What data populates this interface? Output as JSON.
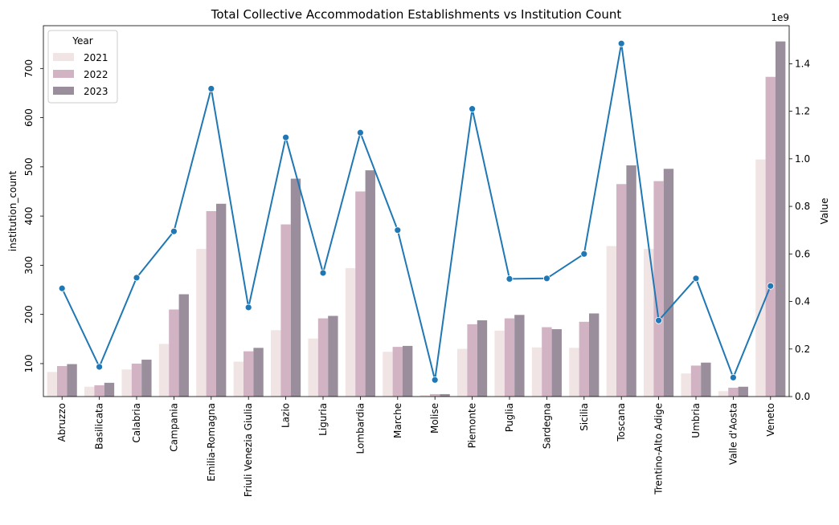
{
  "chart_data": {
    "type": "bar",
    "title": "Total Collective Accommodation Establishments vs Institution Count",
    "categories": [
      "Abruzzo",
      "Basilicata",
      "Calabria",
      "Campania",
      "Emilia-Romagna",
      "Friuli Venezia Giulia",
      "Lazio",
      "Liguria",
      "Lombardia",
      "Marche",
      "Molise",
      "Piemonte",
      "Puglia",
      "Sardegna",
      "Sicilia",
      "Toscana",
      "Trentino-Alto Adige",
      "Umbria",
      "Valle d'Aosta",
      "Veneto"
    ],
    "ylabel_left": "institution_count",
    "ylabel_right": "Value",
    "right_axis_offset_text": "1e9",
    "ylim_left": [
      33,
      787
    ],
    "yticks_left": [
      100,
      200,
      300,
      400,
      500,
      600,
      700
    ],
    "ylim_right": [
      0,
      1.56
    ],
    "yticks_right": [
      0.0,
      0.2,
      0.4,
      0.6,
      0.8,
      1.0,
      1.2,
      1.4
    ],
    "yticklabels_right": [
      "0.0",
      "0.2",
      "0.4",
      "0.6",
      "0.8",
      "1.0",
      "1.2",
      "1.4"
    ],
    "legend": {
      "title": "Year",
      "placement": "top-left"
    },
    "series": [
      {
        "name": "2021",
        "axis": "left",
        "color": "#f0e4e4",
        "values": [
          83,
          53,
          88,
          140,
          333,
          104,
          168,
          151,
          294,
          124,
          36,
          130,
          167,
          133,
          132,
          339,
          333,
          80,
          44,
          515
        ]
      },
      {
        "name": "2022",
        "axis": "left",
        "color": "#d1b3c4",
        "values": [
          95,
          56,
          100,
          210,
          410,
          125,
          383,
          192,
          450,
          134,
          38,
          180,
          192,
          174,
          185,
          465,
          471,
          96,
          51,
          683
        ]
      },
      {
        "name": "2023",
        "axis": "left",
        "color": "#9a8e9c",
        "values": [
          99,
          61,
          108,
          241,
          425,
          132,
          476,
          197,
          493,
          136,
          38,
          188,
          199,
          170,
          202,
          503,
          496,
          102,
          53,
          755
        ]
      },
      {
        "name": "",
        "axis": "right",
        "type": "line",
        "color": "#1f77b4",
        "values": [
          0.455,
          0.125,
          0.5,
          0.695,
          1.295,
          0.375,
          1.09,
          0.52,
          1.11,
          0.7,
          0.07,
          1.21,
          0.495,
          0.497,
          0.6,
          1.485,
          0.32,
          0.497,
          0.08,
          0.465
        ]
      }
    ]
  }
}
